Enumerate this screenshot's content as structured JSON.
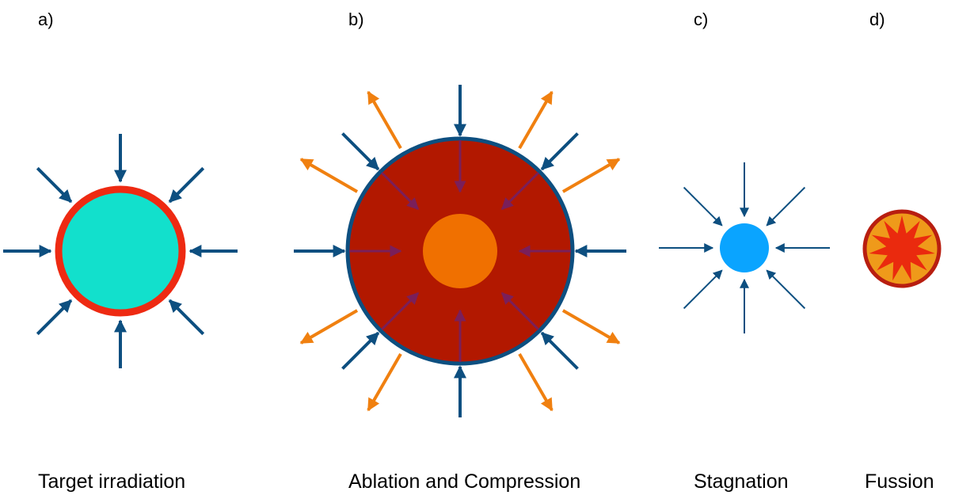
{
  "panels": [
    {
      "letter": "a)",
      "caption": "Target irradiation"
    },
    {
      "letter": "b)",
      "caption": "Ablation and Compression"
    },
    {
      "letter": "c)",
      "caption": "Stagnation"
    },
    {
      "letter": "d)",
      "caption": "Fussion"
    }
  ],
  "colors": {
    "laser_arrow": "#0d4f80",
    "ablation_arrow": "#f08010",
    "inner_arrow": "#7a1f5a",
    "target_fill": "#12e0cc",
    "target_shell": "#ee2a12",
    "compressed_fill": "#b21800",
    "compressed_rim": "#0d4f80",
    "hot_core": "#f07000",
    "stagnation_fill": "#0aa4ff",
    "fusion_outer": "#ef9a1a",
    "fusion_rim": "#b81e10",
    "fusion_star": "#ea2a0e"
  }
}
